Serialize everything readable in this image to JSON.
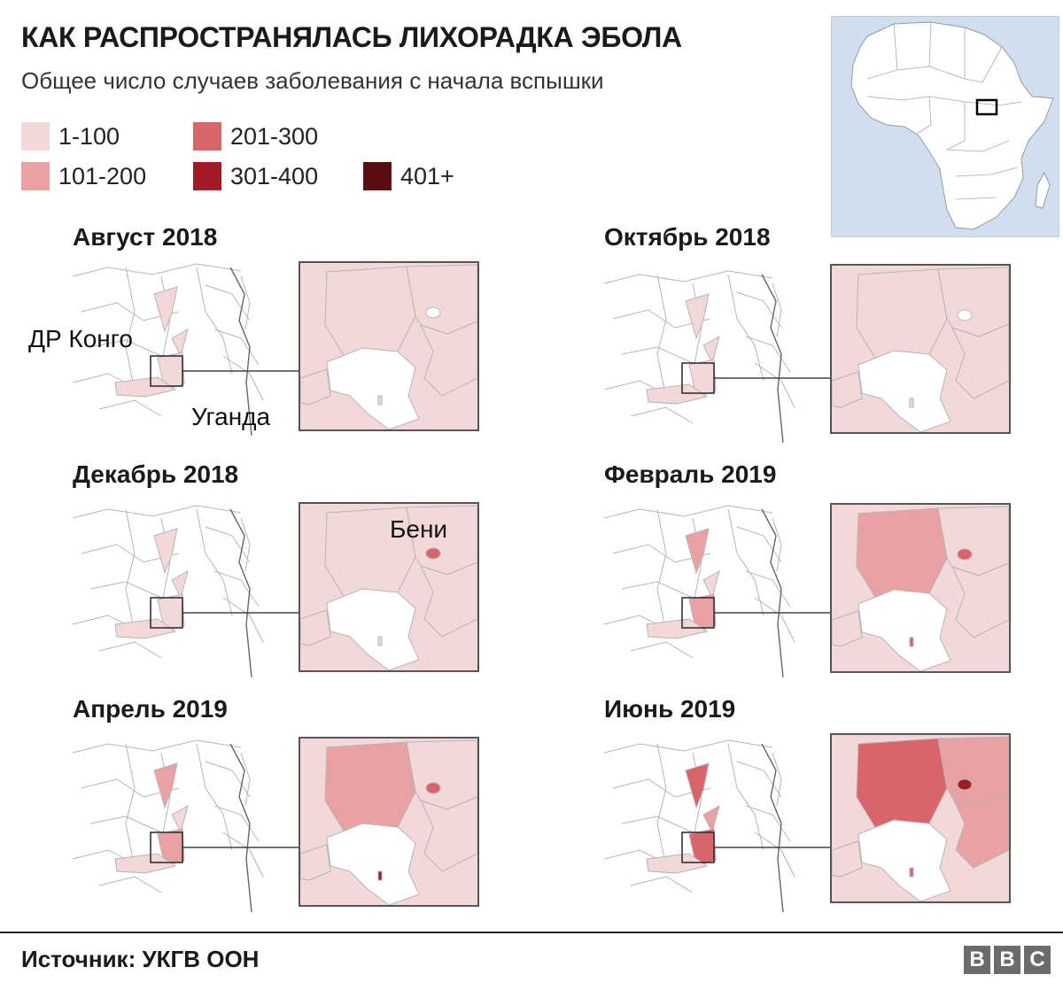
{
  "header": {
    "title": "КАК РАСПРОСТРАНЯЛАСЬ ЛИХОРАДКА ЭБОЛА",
    "subtitle": "Общее число случаев заболевания с начала вспышки"
  },
  "legend": [
    {
      "label": "1-100",
      "color": "#f2d8d9"
    },
    {
      "label": "101-200",
      "color": "#eaa1a3"
    },
    {
      "label": "201-300",
      "color": "#d9646a"
    },
    {
      "label": "301-400",
      "color": "#a01c24"
    },
    {
      "label": "401+",
      "color": "#5a0e12"
    }
  ],
  "panels": [
    {
      "title": "Август 2018",
      "north_class": 1,
      "central_class": 1,
      "south_class": 1,
      "beni_class": 0,
      "small_class": 1
    },
    {
      "title": "Октябрь 2018",
      "north_class": 1,
      "central_class": 1,
      "south_class": 1,
      "beni_class": 0,
      "small_class": 1
    },
    {
      "title": "Декабрь 2018",
      "north_class": 1,
      "central_class": 1,
      "south_class": 1,
      "beni_class": 3,
      "small_class": 1
    },
    {
      "title": "Февраль 2019",
      "north_class": 2,
      "central_class": 1,
      "south_class": 1,
      "beni_class": 3,
      "small_class": 3
    },
    {
      "title": "Апрель 2019",
      "north_class": 2,
      "central_class": 1,
      "south_class": 1,
      "beni_class": 3,
      "small_class": 4
    },
    {
      "title": "Июнь 2019",
      "north_class": 3,
      "central_class": 2,
      "south_class": 1,
      "beni_class": 4,
      "small_class": 3
    }
  ],
  "map_labels": {
    "drc": "ДР Конго",
    "uganda": "Уганда",
    "beni": "Бени"
  },
  "colors": {
    "border": "#b5b5b5",
    "inset_border": "#555555",
    "ocean": "#cfdff0",
    "land": "#ffffff"
  },
  "footer": {
    "source": "Источник: УКГВ ООН",
    "brand": [
      "B",
      "B",
      "C"
    ]
  }
}
